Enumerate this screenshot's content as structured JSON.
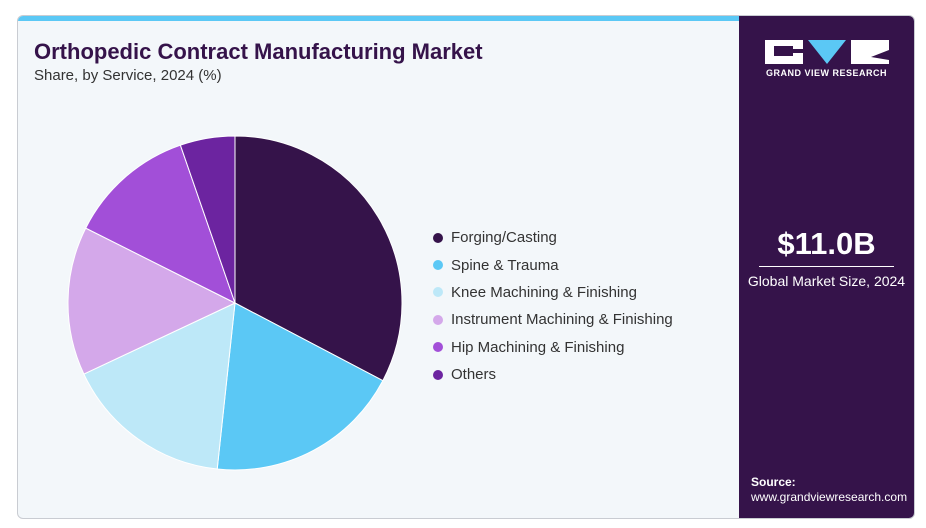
{
  "header": {
    "title": "Orthopedic Contract Manufacturing Market",
    "subtitle": "Share, by Service, 2024 (%)"
  },
  "brand": {
    "name": "GRAND VIEW RESEARCH",
    "market_size": "$11.0B",
    "market_size_label": "Global Market Size, 2024",
    "source_label": "Source:",
    "source_url": "www.grandviewresearch.com"
  },
  "chart_data": {
    "type": "pie",
    "title": "Orthopedic Contract Manufacturing Market",
    "subtitle": "Share, by Service, 2024 (%)",
    "legend_position": "right",
    "categories": [
      "Forging/Casting",
      "Spine & Trauma",
      "Knee Machining & Finishing",
      "Instrument Machining & Finishing",
      "Hip Machining & Finishing",
      "Others"
    ],
    "values": [
      32.7,
      19.0,
      16.3,
      14.4,
      12.3,
      5.3
    ],
    "colors": [
      "#35134a",
      "#5bc8f5",
      "#bde8f8",
      "#d4a8ea",
      "#a24fd8",
      "#6c24a0"
    ]
  }
}
